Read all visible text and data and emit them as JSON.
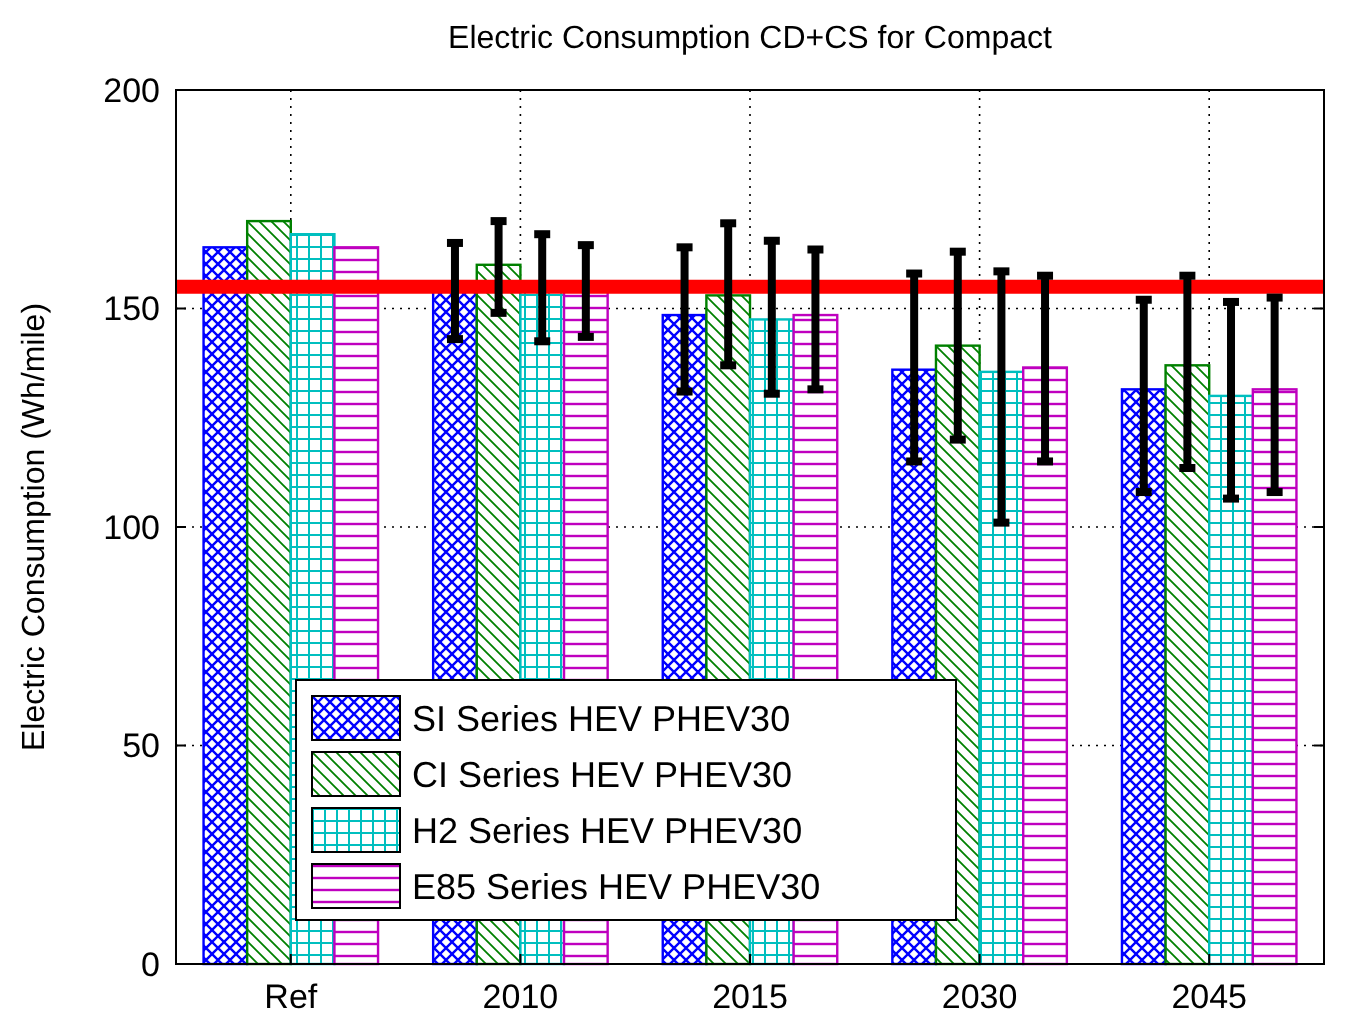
{
  "chart_data": {
    "type": "bar",
    "title": "Electric Consumption CD+CS for Compact",
    "ylabel": "Electric Consumption (Wh/mile)",
    "categories": [
      "Ref",
      "2010",
      "2015",
      "2030",
      "2045"
    ],
    "series": [
      {
        "name": "SI Series HEV PHEV30",
        "color": "#0000ff",
        "values": [
          164,
          154,
          148.5,
          136,
          131.5
        ],
        "errors": [
          null,
          [
            143,
            165
          ],
          [
            131,
            164
          ],
          [
            115,
            158
          ],
          [
            108,
            152
          ]
        ]
      },
      {
        "name": "CI Series HEV PHEV30",
        "color": "#008000",
        "values": [
          170,
          160,
          153,
          141.5,
          137
        ],
        "errors": [
          null,
          [
            149,
            170
          ],
          [
            137,
            169.5
          ],
          [
            120,
            163
          ],
          [
            113.5,
            157.5
          ]
        ]
      },
      {
        "name": "H2 Series HEV PHEV30",
        "color": "#00bfbf",
        "values": [
          167,
          155,
          147.5,
          135.5,
          130
        ],
        "errors": [
          null,
          [
            142.5,
            167
          ],
          [
            130.5,
            165.5
          ],
          [
            101,
            158.5
          ],
          [
            106.5,
            151.5
          ]
        ]
      },
      {
        "name": "E85 Series HEV PHEV30",
        "color": "#bf00bf",
        "values": [
          164,
          154,
          148.5,
          136.5,
          131.5
        ],
        "errors": [
          null,
          [
            143.5,
            164.5
          ],
          [
            131.5,
            163.5
          ],
          [
            115,
            157.5
          ],
          [
            108,
            152.5
          ]
        ]
      }
    ],
    "ylim": [
      0,
      200
    ],
    "yticks": [
      0,
      50,
      100,
      150,
      200
    ],
    "grid": true,
    "legend": "bottom left",
    "ref_lines": [
      {
        "axis": "y",
        "value": 155,
        "color": "#ff0000"
      }
    ]
  }
}
